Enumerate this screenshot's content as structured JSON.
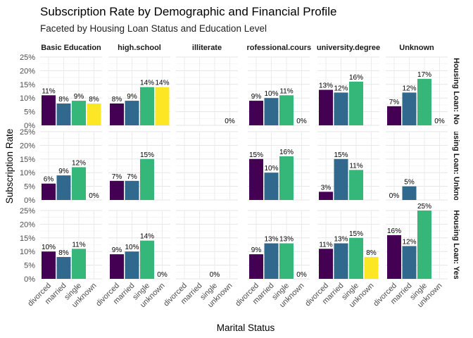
{
  "chart_data": {
    "type": "bar",
    "title": "Subscription Rate by Demographic and Financial Profile",
    "subtitle": "Faceted by Housing Loan Status and Education Level",
    "xlabel": "Marital Status",
    "ylabel": "Subscription Rate",
    "ylim": [
      0,
      0.25
    ],
    "yticks": [
      0,
      0.05,
      0.1,
      0.15,
      0.2,
      0.25
    ],
    "ytick_labels": [
      "0%",
      "5%",
      "10%",
      "15%",
      "20%",
      "25%"
    ],
    "categories": [
      "divorced",
      "married",
      "single",
      "unknown"
    ],
    "colors": {
      "divorced": "#440154",
      "married": "#31688e",
      "single": "#35b779",
      "unknown": "#fde725"
    },
    "grid": true,
    "legend": "none",
    "columns": [
      "Basic Education",
      "high.school",
      "illiterate",
      "professional.course",
      "university.degree",
      "Unknown"
    ],
    "rows": [
      "Housing Loan: No",
      "Housing Loan: Unknown",
      "Housing Loan: Yes"
    ],
    "facets": [
      [
        {
          "values": [
            0.11,
            0.08,
            0.09,
            0.08
          ],
          "labels": [
            "11%",
            "8%",
            "9%",
            "8%"
          ]
        },
        {
          "values": [
            0.08,
            0.09,
            0.14,
            0.14
          ],
          "labels": [
            "8%",
            "9%",
            "14%",
            "14%"
          ]
        },
        {
          "values": [
            null,
            null,
            null,
            0.0
          ],
          "labels": [
            "",
            "",
            "",
            "0%"
          ]
        },
        {
          "values": [
            0.09,
            0.1,
            0.11,
            0.0
          ],
          "labels": [
            "9%",
            "10%",
            "11%",
            "0%"
          ]
        },
        {
          "values": [
            0.13,
            0.12,
            0.16,
            null
          ],
          "labels": [
            "13%",
            "12%",
            "16%",
            ""
          ]
        },
        {
          "values": [
            0.07,
            0.12,
            0.17,
            0.0
          ],
          "labels": [
            "7%",
            "12%",
            "17%",
            "0%"
          ]
        }
      ],
      [
        {
          "values": [
            0.06,
            0.09,
            0.12,
            0.0
          ],
          "labels": [
            "6%",
            "9%",
            "12%",
            "0%"
          ]
        },
        {
          "values": [
            0.07,
            0.07,
            0.15,
            null
          ],
          "labels": [
            "7%",
            "7%",
            "15%",
            ""
          ]
        },
        {
          "values": [
            null,
            null,
            null,
            null
          ],
          "labels": [
            "",
            "",
            "",
            ""
          ]
        },
        {
          "values": [
            0.15,
            0.1,
            0.16,
            null
          ],
          "labels": [
            "15%",
            "10%",
            "16%",
            ""
          ]
        },
        {
          "values": [
            0.03,
            0.15,
            0.11,
            null
          ],
          "labels": [
            "3%",
            "15%",
            "11%",
            ""
          ]
        },
        {
          "values": [
            0.0,
            0.05,
            null,
            null
          ],
          "labels": [
            "0%",
            "5%",
            "",
            ""
          ]
        }
      ],
      [
        {
          "values": [
            0.1,
            0.08,
            0.11,
            null
          ],
          "labels": [
            "10%",
            "8%",
            "11%",
            ""
          ]
        },
        {
          "values": [
            0.09,
            0.1,
            0.14,
            0.0
          ],
          "labels": [
            "9%",
            "10%",
            "14%",
            "0%"
          ]
        },
        {
          "values": [
            null,
            null,
            0.0,
            null
          ],
          "labels": [
            "",
            "",
            "0%",
            ""
          ]
        },
        {
          "values": [
            0.09,
            0.13,
            0.13,
            0.0
          ],
          "labels": [
            "9%",
            "13%",
            "13%",
            "0%"
          ]
        },
        {
          "values": [
            0.11,
            0.13,
            0.15,
            0.08
          ],
          "labels": [
            "11%",
            "13%",
            "15%",
            "8%"
          ]
        },
        {
          "values": [
            0.16,
            0.12,
            0.25,
            null
          ],
          "labels": [
            "16%",
            "12%",
            "25%",
            ""
          ]
        }
      ]
    ]
  }
}
